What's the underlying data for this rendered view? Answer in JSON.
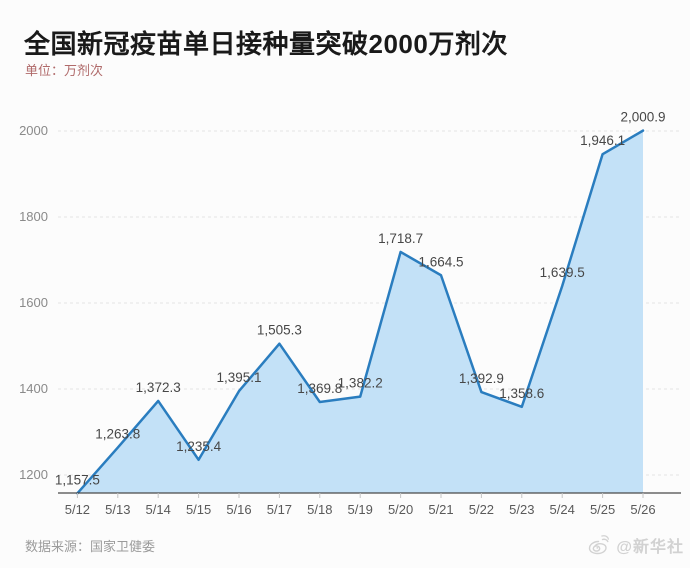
{
  "header": {
    "title": "全国新冠疫苗单日接种量突破2000万剂次",
    "unit_label": "单位：万剂次"
  },
  "footer": {
    "source": "数据来源：国家卫健委",
    "watermark": "@新华社"
  },
  "colors": {
    "background": "#fcfcfc",
    "title": "#1a1a1a",
    "subtitle": "#b06a6a",
    "line": "#2a7dbf",
    "area_fill": "#c3e1f7",
    "grid": "#e4e4e4",
    "axis": "#4a4a4a",
    "tick": "#c4c4c4",
    "y_label": "#8a8a8a",
    "x_label": "#5a5a5a",
    "data_label": "#474747",
    "source": "#9b9b9b",
    "watermark": "#d2d2d2"
  },
  "chart_data": {
    "type": "area",
    "title": "全国新冠疫苗单日接种量突破2000万剂次",
    "unit": "万剂次",
    "x": [
      "5/12",
      "5/13",
      "5/14",
      "5/15",
      "5/16",
      "5/17",
      "5/18",
      "5/19",
      "5/20",
      "5/21",
      "5/22",
      "5/23",
      "5/24",
      "5/25",
      "5/26"
    ],
    "values": [
      1157.5,
      1263.8,
      1372.3,
      1235.4,
      1395.1,
      1505.3,
      1369.8,
      1382.2,
      1718.7,
      1664.5,
      1392.9,
      1358.6,
      1639.5,
      1946.1,
      2000.9
    ],
    "y_ticks": [
      1200,
      1400,
      1600,
      1800,
      2000
    ],
    "ylim": [
      1157.5,
      2050
    ],
    "xlabel": "",
    "ylabel": "万剂次",
    "grid": "dashed-horizontal",
    "legend": "none",
    "data_labels": true
  }
}
